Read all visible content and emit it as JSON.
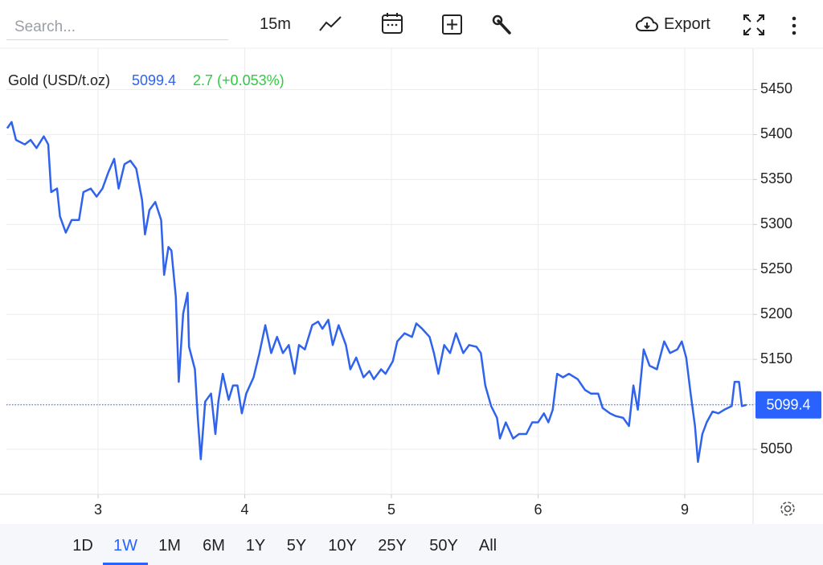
{
  "toolbar": {
    "search_placeholder": "Search...",
    "interval": "15m",
    "export": "Export"
  },
  "chart_data": {
    "type": "line",
    "legend": {
      "name": "Gold (USD/t.oz)",
      "price": 5099.4,
      "change": 2.7,
      "change_pct": "(+0.053%)",
      "change_color": "#2ecc40"
    },
    "last_price": 5099.4,
    "series": [
      {
        "name": "Gold (USD/t.oz)",
        "color": "#2f63ee",
        "x": [
          0.38,
          0.41,
          0.44,
          0.5,
          0.54,
          0.58,
          0.63,
          0.66,
          0.68,
          0.72,
          0.74,
          0.78,
          0.82,
          0.87,
          0.9,
          0.95,
          0.99,
          1.03,
          1.07,
          1.11,
          1.14,
          1.18,
          1.22,
          1.26,
          1.3,
          1.32,
          1.35,
          1.39,
          1.43,
          1.45,
          1.48,
          1.5,
          1.53,
          1.55,
          1.58,
          1.61,
          1.62,
          1.66,
          1.68,
          1.7,
          1.73,
          1.77,
          1.8,
          1.82,
          1.85,
          1.89,
          1.92,
          1.95,
          1.98,
          2.01,
          2.06,
          2.1,
          2.14,
          2.18,
          2.22,
          2.26,
          2.3,
          2.34,
          2.37,
          2.41,
          2.46,
          2.5,
          2.53,
          2.57,
          2.6,
          2.64,
          2.69,
          2.72,
          2.76,
          2.81,
          2.85,
          2.88,
          2.93,
          2.96,
          3.01,
          3.04,
          3.09,
          3.14,
          3.17,
          3.21,
          3.26,
          3.29,
          3.32,
          3.36,
          3.4,
          3.44,
          3.49,
          3.53,
          3.58,
          3.61,
          3.64,
          3.68,
          3.72,
          3.74,
          3.78,
          3.83,
          3.87,
          3.92,
          3.96,
          4.0,
          4.04,
          4.07,
          4.1,
          4.13,
          4.17,
          4.21,
          4.27,
          4.32,
          4.36,
          4.41,
          4.44,
          4.49,
          4.53,
          4.58,
          4.62,
          4.65,
          4.68,
          4.72,
          4.76,
          4.81,
          4.86,
          4.9,
          4.95,
          4.98,
          5.01,
          5.04,
          5.07,
          5.09,
          5.12,
          5.15,
          5.19,
          5.23,
          5.27,
          5.32,
          5.34,
          5.37,
          5.39,
          5.42
        ],
        "values": [
          5407,
          5414,
          5394,
          5389,
          5394,
          5385,
          5398,
          5389,
          5336,
          5340,
          5309,
          5291,
          5305,
          5305,
          5336,
          5340,
          5331,
          5340,
          5358,
          5373,
          5340,
          5367,
          5371,
          5362,
          5327,
          5289,
          5316,
          5325,
          5305,
          5244,
          5275,
          5271,
          5219,
          5125,
          5201,
          5224,
          5164,
          5139,
          5085,
          5039,
          5103,
          5112,
          5067,
          5103,
          5134,
          5105,
          5121,
          5121,
          5090,
          5112,
          5130,
          5157,
          5188,
          5157,
          5175,
          5157,
          5166,
          5134,
          5166,
          5161,
          5188,
          5192,
          5184,
          5194,
          5166,
          5188,
          5166,
          5139,
          5152,
          5130,
          5137,
          5128,
          5139,
          5134,
          5148,
          5170,
          5179,
          5175,
          5190,
          5184,
          5175,
          5157,
          5134,
          5166,
          5157,
          5179,
          5157,
          5166,
          5164,
          5157,
          5121,
          5098,
          5085,
          5062,
          5080,
          5062,
          5067,
          5067,
          5080,
          5080,
          5090,
          5080,
          5094,
          5134,
          5130,
          5134,
          5128,
          5116,
          5112,
          5112,
          5096,
          5090,
          5087,
          5085,
          5076,
          5121,
          5094,
          5161,
          5143,
          5139,
          5170,
          5157,
          5161,
          5170,
          5152,
          5112,
          5076,
          5036,
          5067,
          5080,
          5092,
          5090,
          5094,
          5098,
          5125,
          5125,
          5098,
          5099.4
        ]
      }
    ],
    "xlim": [
      0.375,
      5.466
    ],
    "xticks": [
      {
        "value": 1,
        "label": "3"
      },
      {
        "value": 2,
        "label": "4"
      },
      {
        "value": 3,
        "label": "5"
      },
      {
        "value": 4,
        "label": "6"
      },
      {
        "value": 5,
        "label": "9"
      }
    ],
    "ylim": [
      5000,
      5496
    ],
    "yticks": [
      5050,
      5100,
      5150,
      5200,
      5250,
      5300,
      5350,
      5400,
      5450
    ],
    "grid": true
  },
  "ranges": {
    "items": [
      "1D",
      "1W",
      "1M",
      "6M",
      "1Y",
      "5Y",
      "10Y",
      "25Y",
      "50Y",
      "All"
    ],
    "selected_index": 1
  }
}
